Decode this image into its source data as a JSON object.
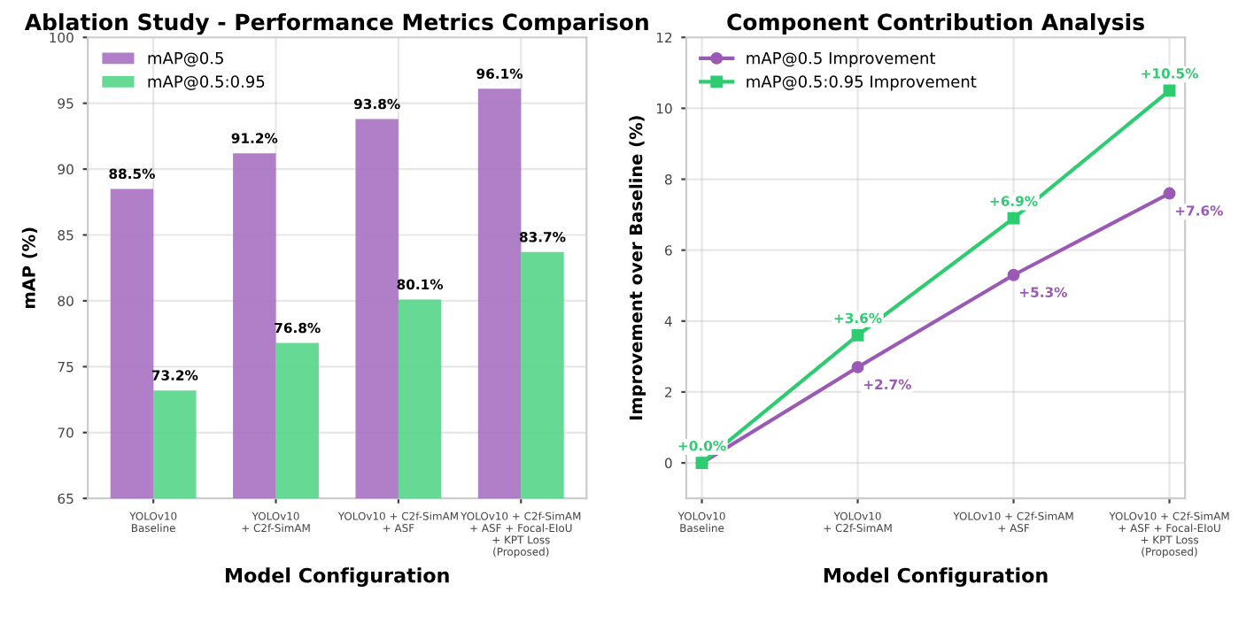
{
  "chart_data": [
    {
      "type": "bar",
      "title": "Ablation Study - Performance Metrics Comparison",
      "xlabel": "Model Configuration",
      "ylabel": "mAP (%)",
      "categories": [
        "YOLOv10\nBaseline",
        "YOLOv10\n+ C2f-SimAM",
        "YOLOv10 + C2f-SimAM\n+ ASF",
        "YOLOv10 + C2f-SimAM\n+ ASF + Focal-EIoU\n+ KPT Loss\n(Proposed)"
      ],
      "series": [
        {
          "name": "mAP@0.5",
          "color": "#a970c2",
          "values": [
            88.5,
            91.2,
            93.8,
            96.1
          ],
          "value_labels": [
            "88.5%",
            "91.2%",
            "93.8%",
            "96.1%"
          ]
        },
        {
          "name": "mAP@0.5:0.95",
          "color": "#55d68a",
          "values": [
            73.2,
            76.8,
            80.1,
            83.7
          ],
          "value_labels": [
            "73.2%",
            "76.8%",
            "80.1%",
            "83.7%"
          ]
        }
      ],
      "ylim": [
        65,
        100
      ],
      "yticks": [
        65,
        70,
        75,
        80,
        85,
        90,
        95,
        100
      ],
      "grid": true,
      "legend": "top left"
    },
    {
      "type": "line",
      "title": "Component Contribution Analysis",
      "xlabel": "Model Configuration",
      "ylabel": "Improvement over Baseline (%)",
      "categories": [
        "YOLOv10\nBaseline",
        "YOLOv10\n+ C2f-SimAM",
        "YOLOv10 + C2f-SimAM\n+ ASF",
        "YOLOv10 + C2f-SimAM\n+ ASF + Focal-EIoU\n+ KPT Loss\n(Proposed)"
      ],
      "series": [
        {
          "name": "mAP@0.5 Improvement",
          "color": "#9b59b6",
          "marker": "circle",
          "values": [
            0.0,
            2.7,
            5.3,
            7.6
          ],
          "value_labels": [
            null,
            "+2.7%",
            "+5.3%",
            "+7.6%"
          ]
        },
        {
          "name": "mAP@0.5:0.95 Improvement",
          "color": "#2ecc71",
          "marker": "square",
          "values": [
            0.0,
            3.6,
            6.9,
            10.5
          ],
          "value_labels": [
            "+0.0%",
            "+3.6%",
            "+6.9%",
            "+10.5%"
          ]
        }
      ],
      "ylim": [
        -1,
        12
      ],
      "yticks": [
        0,
        2,
        4,
        6,
        8,
        10,
        12
      ],
      "grid": true,
      "legend": "top left",
      "line_style": "solid"
    }
  ]
}
